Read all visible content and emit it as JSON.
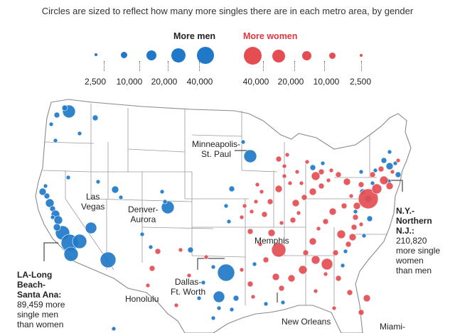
{
  "subtitle": "Circles are sized to reflect how many more singles there are in each metro area, by gender",
  "legend": {
    "men_title": "More men",
    "women_title": "More women",
    "men_sizes": [
      "2,500",
      "10,000",
      "20,000",
      "40,000"
    ],
    "women_sizes": [
      "40,000",
      "20,000",
      "10,000",
      "2,500"
    ],
    "men_color": "#1f78c8",
    "women_color": "#e44d51"
  },
  "labels": {
    "minneapolis": [
      "Minneapolis-",
      "St. Paul"
    ],
    "las_vegas": [
      "Las",
      "Vegas"
    ],
    "denver": [
      "Denver-",
      "Aurora"
    ],
    "memphis": "Memphis",
    "dallas": [
      "Dallas-",
      "Ft. Worth"
    ],
    "honolulu": "Honolulu",
    "new_orleans": "New Orleans",
    "miami": "Miami-"
  },
  "callouts": {
    "la": {
      "name": [
        "LA-Long",
        "Beach-",
        "Santa Ana:"
      ],
      "detail": [
        "89,459 more",
        "single men",
        "than women"
      ]
    },
    "ny": {
      "name": [
        "N.Y.-",
        "Northern",
        "N.J.:"
      ],
      "detail": [
        "210,820",
        "more single",
        "women",
        "than men"
      ]
    }
  }
}
